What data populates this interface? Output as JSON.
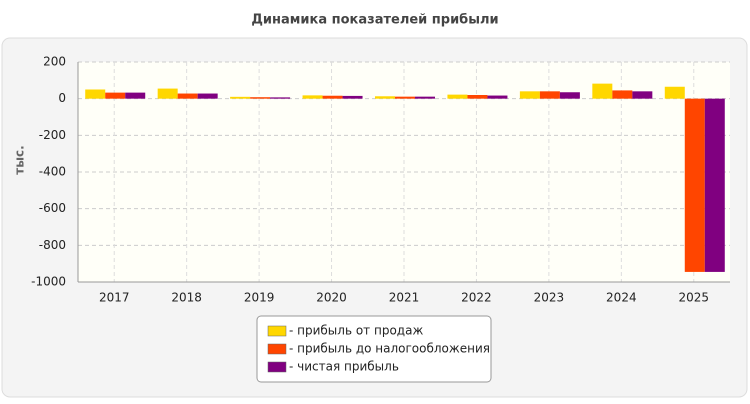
{
  "chart_data": {
    "type": "bar",
    "title": "Динамика показателей прибыли",
    "y_label": "тыс.",
    "categories": [
      "2017",
      "2018",
      "2019",
      "2020",
      "2021",
      "2022",
      "2023",
      "2024",
      "2025"
    ],
    "series": [
      {
        "name": "- прибыль от продаж",
        "color": "#ffd700",
        "values": [
          50,
          55,
          10,
          18,
          13,
          22,
          40,
          82,
          65
        ]
      },
      {
        "name": "- прибыль до налогообложения",
        "color": "#ff4500",
        "values": [
          33,
          28,
          8,
          16,
          11,
          20,
          40,
          45,
          -945
        ]
      },
      {
        "name": "- чистая прибыль",
        "color": "#800080",
        "values": [
          33,
          28,
          7,
          15,
          11,
          17,
          35,
          40,
          -945
        ]
      }
    ],
    "ylim": [
      -1000,
      200
    ],
    "yticks": [
      -1000,
      -800,
      -600,
      -400,
      -200,
      0,
      200
    ],
    "grid": true
  }
}
